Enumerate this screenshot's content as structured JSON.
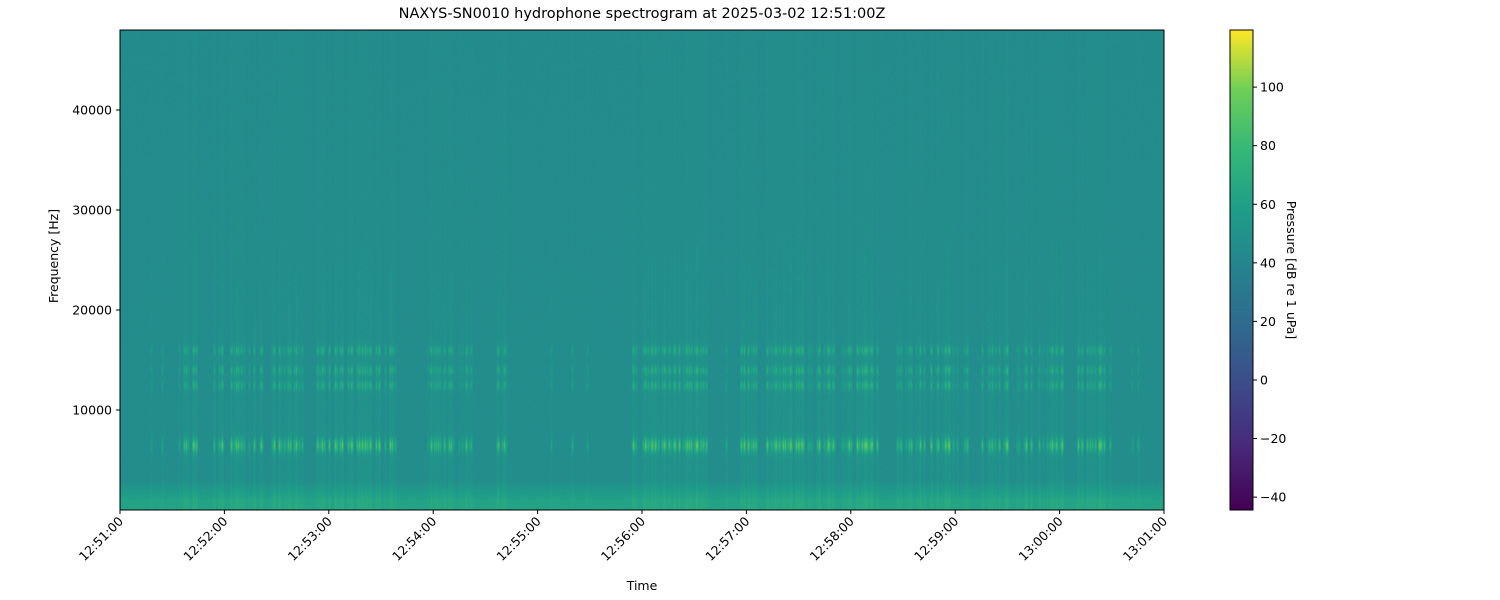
{
  "chart_data": {
    "type": "heatmap",
    "title": "NAXYS-SN0010 hydrophone spectrogram at 2025-03-02 12:51:00Z",
    "xlabel": "Time",
    "ylabel": "Frequency [Hz]",
    "x_ticks": [
      "12:51:00",
      "12:52:00",
      "12:53:00",
      "12:54:00",
      "12:55:00",
      "12:56:00",
      "12:57:00",
      "12:58:00",
      "12:59:00",
      "13:00:00",
      "13:01:00"
    ],
    "xlim": [
      "12:51:00",
      "13:01:00"
    ],
    "y_ticks": [
      10000,
      20000,
      30000,
      40000
    ],
    "ylim": [
      0,
      48000
    ],
    "colormap": "viridis",
    "colorbar": {
      "label": "Pressure [dB re 1 uPa]",
      "ticks": [
        -40,
        -20,
        0,
        20,
        40,
        60,
        80,
        100
      ],
      "range": [
        -44.4,
        119.5
      ]
    },
    "levels_db": {
      "background": 46,
      "low_frequency_below_1000_hz": 64,
      "transient_peak": 100
    },
    "tonal_bands_hz": [
      6500,
      12500,
      14000,
      16000
    ],
    "grid": false
  }
}
